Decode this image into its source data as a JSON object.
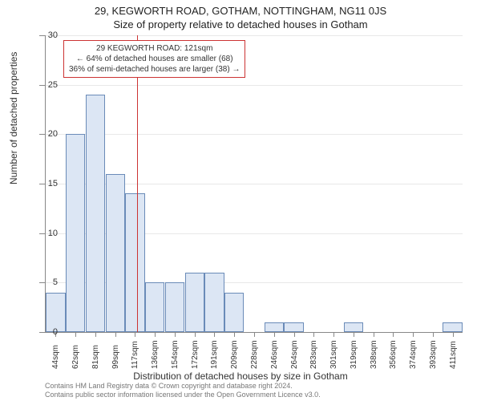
{
  "header": {
    "address": "29, KEGWORTH ROAD, GOTHAM, NOTTINGHAM, NG11 0JS",
    "subtitle": "Size of property relative to detached houses in Gotham"
  },
  "chart": {
    "type": "histogram",
    "categories": [
      "44sqm",
      "62sqm",
      "81sqm",
      "99sqm",
      "117sqm",
      "136sqm",
      "154sqm",
      "172sqm",
      "191sqm",
      "209sqm",
      "228sqm",
      "246sqm",
      "264sqm",
      "283sqm",
      "301sqm",
      "319sqm",
      "338sqm",
      "356sqm",
      "374sqm",
      "393sqm",
      "411sqm"
    ],
    "values": [
      4,
      20,
      24,
      16,
      14,
      5,
      5,
      6,
      6,
      4,
      0,
      1,
      1,
      0,
      0,
      1,
      0,
      0,
      0,
      0,
      1
    ],
    "ylim": [
      0,
      30
    ],
    "yticks": [
      0,
      5,
      10,
      15,
      20,
      25,
      30
    ],
    "bar_fill": "#dce6f4",
    "bar_stroke": "#6a8bb8",
    "grid_color": "#e8e8e8",
    "axis_color": "#888888",
    "background": "#ffffff",
    "y_axis_title": "Number of detached properties",
    "x_axis_title": "Distribution of detached houses by size in Gotham",
    "reference": {
      "index_position": 4.1,
      "color": "#cc3333",
      "callout_lines": [
        "29 KEGWORTH ROAD: 121sqm",
        "← 64% of detached houses are smaller (68)",
        "36% of semi-detached houses are larger (38) →"
      ]
    },
    "label_fontsize": 11,
    "title_fontsize": 13
  },
  "footer": {
    "line1": "Contains HM Land Registry data © Crown copyright and database right 2024.",
    "line2": "Contains public sector information licensed under the Open Government Licence v3.0."
  }
}
